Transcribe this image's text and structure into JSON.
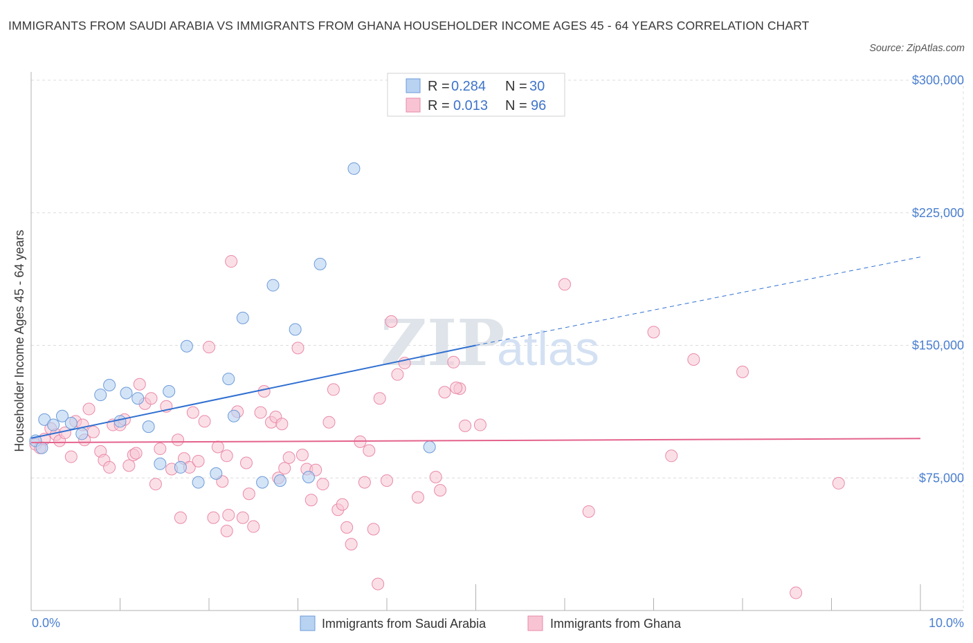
{
  "header": {
    "title": "IMMIGRANTS FROM SAUDI ARABIA VS IMMIGRANTS FROM GHANA HOUSEHOLDER INCOME AGES 45 - 64 YEARS CORRELATION CHART",
    "source": "Source: ZipAtlas.com"
  },
  "watermark": {
    "part1": "ZIP",
    "part2": "atlas"
  },
  "colors": {
    "saudi_fill": "#b8d2f2",
    "saudi_stroke": "#6d9bd8",
    "saudi_line": "#2f6fd1",
    "ghana_fill": "#f8c4d4",
    "ghana_stroke": "#e98aa8",
    "ghana_line": "#e4628c",
    "tick_color": "#4a7fd0",
    "grid": "#dcdcdc"
  },
  "legend": {
    "rows": [
      {
        "r_label": "R = ",
        "r_value": "0.284",
        "n_label": "N = ",
        "n_value": "30"
      },
      {
        "r_label": "R = ",
        "r_value": "0.013",
        "n_label": "N = ",
        "n_value": "96"
      }
    ]
  },
  "chart_data": {
    "type": "scatter",
    "title": "IMMIGRANTS FROM SAUDI ARABIA VS IMMIGRANTS FROM GHANA HOUSEHOLDER INCOME AGES 45 - 64 YEARS CORRELATION CHART",
    "xlabel": "",
    "ylabel": "Householder Income Ages 45 - 64 years",
    "xlim": [
      0,
      10
    ],
    "ylim": [
      0,
      300000
    ],
    "x_tick_labels": [
      "0.0%",
      "10.0%"
    ],
    "y_ticks": [
      75000,
      150000,
      225000,
      300000
    ],
    "y_tick_labels": [
      "$75,000",
      "$150,000",
      "$225,000",
      "$300,000"
    ],
    "grid": true,
    "legend_position": "top-center",
    "series": [
      {
        "name": "Immigrants from Saudi Arabia",
        "r": 0.284,
        "n": 30,
        "trend": {
          "x": [
            0,
            5.0
          ],
          "y": [
            97500,
            150000
          ],
          "dashed_to": [
            10,
            200000
          ]
        },
        "points": [
          [
            0.05,
            96000
          ],
          [
            0.15,
            108000
          ],
          [
            0.25,
            105000
          ],
          [
            0.35,
            110000
          ],
          [
            0.45,
            106000
          ],
          [
            0.57,
            100000
          ],
          [
            0.78,
            122000
          ],
          [
            0.88,
            127500
          ],
          [
            1.0,
            107000
          ],
          [
            1.07,
            123000
          ],
          [
            1.2,
            120000
          ],
          [
            1.32,
            104000
          ],
          [
            1.45,
            83000
          ],
          [
            1.55,
            124000
          ],
          [
            1.68,
            81000
          ],
          [
            1.75,
            149500
          ],
          [
            1.88,
            72500
          ],
          [
            2.08,
            77500
          ],
          [
            2.22,
            131000
          ],
          [
            2.28,
            110000
          ],
          [
            2.38,
            165500
          ],
          [
            2.6,
            72500
          ],
          [
            2.72,
            184000
          ],
          [
            2.8,
            73500
          ],
          [
            2.97,
            159000
          ],
          [
            3.12,
            75500
          ],
          [
            3.25,
            196000
          ],
          [
            3.63,
            250000
          ],
          [
            4.48,
            92500
          ],
          [
            0.12,
            92000
          ]
        ]
      },
      {
        "name": "Immigrants from Ghana",
        "r": 0.013,
        "n": 96,
        "trend": {
          "x": [
            0,
            10
          ],
          "y": [
            95000,
            97300
          ]
        },
        "points": [
          [
            0.05,
            94000
          ],
          [
            0.1,
            92000
          ],
          [
            0.15,
            97000
          ],
          [
            0.22,
            103000
          ],
          [
            0.28,
            99500
          ],
          [
            0.32,
            96000
          ],
          [
            0.38,
            100500
          ],
          [
            0.45,
            87000
          ],
          [
            0.5,
            107000
          ],
          [
            0.58,
            105000
          ],
          [
            0.6,
            96500
          ],
          [
            0.65,
            114000
          ],
          [
            0.7,
            101000
          ],
          [
            0.78,
            90000
          ],
          [
            0.82,
            85000
          ],
          [
            0.88,
            81000
          ],
          [
            0.92,
            105000
          ],
          [
            1.0,
            105000
          ],
          [
            1.05,
            108000
          ],
          [
            1.1,
            82000
          ],
          [
            1.15,
            88000
          ],
          [
            1.18,
            89000
          ],
          [
            1.22,
            128000
          ],
          [
            1.28,
            117000
          ],
          [
            1.35,
            120000
          ],
          [
            1.4,
            71500
          ],
          [
            1.45,
            91500
          ],
          [
            1.52,
            115500
          ],
          [
            1.58,
            80000
          ],
          [
            1.65,
            96500
          ],
          [
            1.68,
            52500
          ],
          [
            1.72,
            86000
          ],
          [
            1.78,
            81000
          ],
          [
            1.82,
            112000
          ],
          [
            1.88,
            84500
          ],
          [
            1.95,
            107000
          ],
          [
            2.0,
            149000
          ],
          [
            2.05,
            52500
          ],
          [
            2.1,
            92500
          ],
          [
            2.15,
            73000
          ],
          [
            2.2,
            87500
          ],
          [
            2.2,
            45000
          ],
          [
            2.22,
            54000
          ],
          [
            2.25,
            197500
          ],
          [
            2.32,
            112500
          ],
          [
            2.38,
            52500
          ],
          [
            2.42,
            83500
          ],
          [
            2.45,
            66000
          ],
          [
            2.5,
            47500
          ],
          [
            2.58,
            112000
          ],
          [
            2.62,
            124000
          ],
          [
            2.7,
            106500
          ],
          [
            2.75,
            109500
          ],
          [
            2.78,
            75000
          ],
          [
            2.82,
            105500
          ],
          [
            2.85,
            80500
          ],
          [
            2.9,
            86500
          ],
          [
            3.0,
            148500
          ],
          [
            3.05,
            88000
          ],
          [
            3.1,
            80000
          ],
          [
            3.15,
            62500
          ],
          [
            3.2,
            79500
          ],
          [
            3.28,
            71500
          ],
          [
            3.35,
            106500
          ],
          [
            3.4,
            125000
          ],
          [
            3.45,
            57000
          ],
          [
            3.5,
            60000
          ],
          [
            3.55,
            47000
          ],
          [
            3.6,
            37500
          ],
          [
            3.7,
            95500
          ],
          [
            3.75,
            72500
          ],
          [
            3.8,
            90500
          ],
          [
            3.85,
            46000
          ],
          [
            3.9,
            15000
          ],
          [
            3.92,
            120000
          ],
          [
            4.0,
            73500
          ],
          [
            4.05,
            163500
          ],
          [
            4.12,
            133500
          ],
          [
            4.2,
            140000
          ],
          [
            4.35,
            64000
          ],
          [
            4.55,
            75500
          ],
          [
            4.6,
            68000
          ],
          [
            4.65,
            123500
          ],
          [
            4.75,
            140500
          ],
          [
            4.82,
            125500
          ],
          [
            4.88,
            104500
          ],
          [
            5.05,
            105000
          ],
          [
            6.0,
            184500
          ],
          [
            6.27,
            56000
          ],
          [
            7.0,
            157500
          ],
          [
            7.2,
            87500
          ],
          [
            7.45,
            142000
          ],
          [
            8.0,
            135000
          ],
          [
            8.6,
            10000
          ],
          [
            9.08,
            72000
          ],
          [
            4.78,
            126000
          ]
        ]
      }
    ]
  },
  "axis": {
    "y_title": "Householder Income Ages 45 - 64 years",
    "x_left": "0.0%",
    "x_right": "10.0%"
  }
}
